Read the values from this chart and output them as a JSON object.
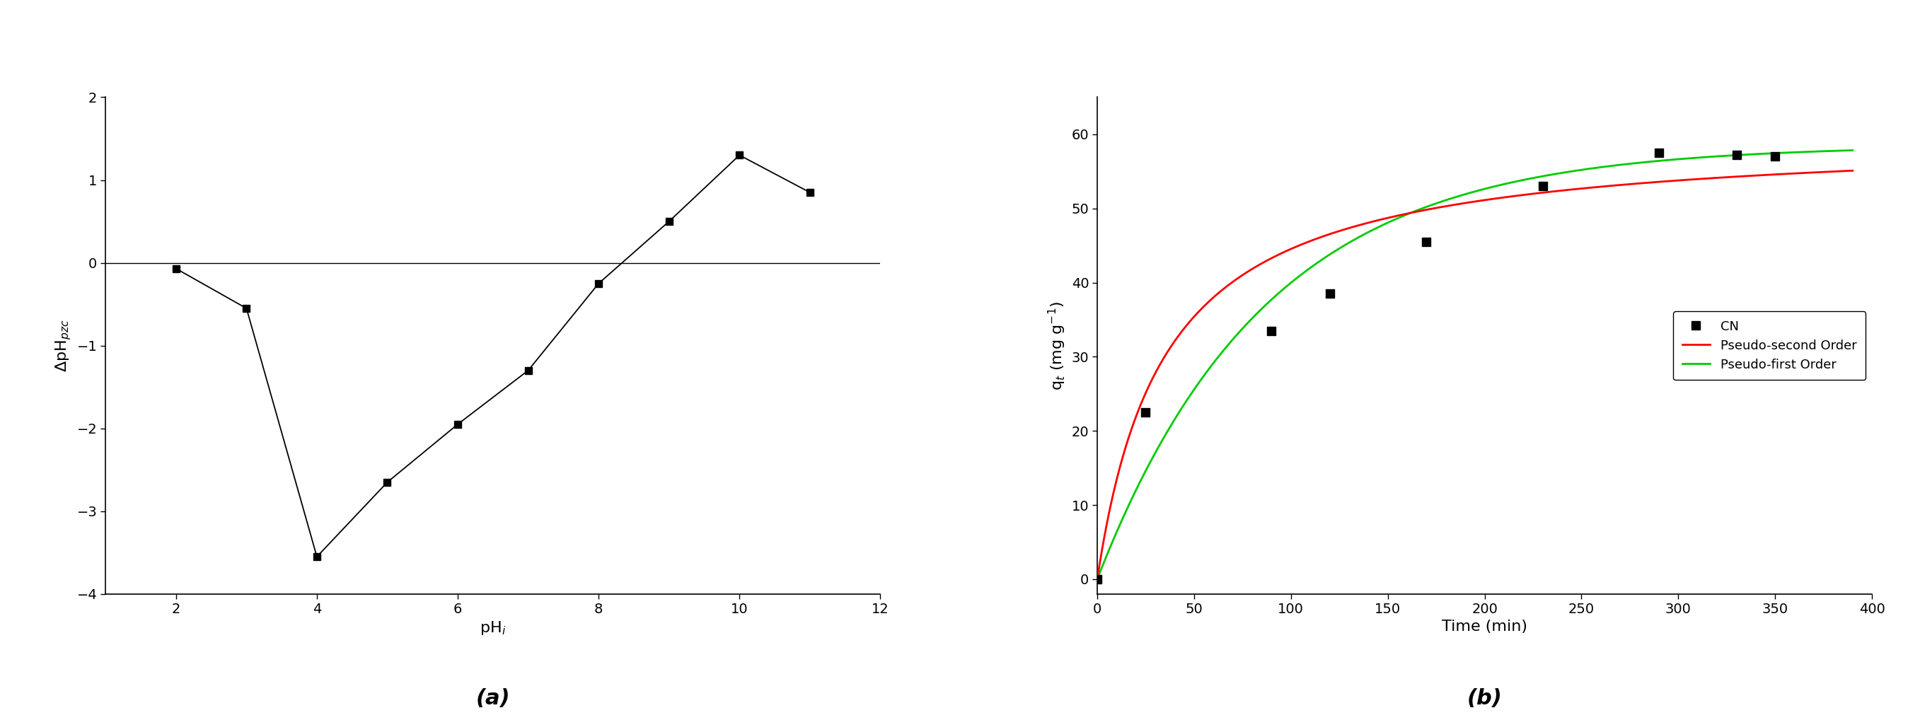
{
  "panel_a": {
    "x": [
      2,
      3,
      4,
      5,
      6,
      7,
      8,
      9,
      10,
      11
    ],
    "y": [
      -0.07,
      -0.55,
      -3.55,
      -2.65,
      -1.95,
      -1.3,
      -0.25,
      0.5,
      1.3,
      0.85
    ],
    "xlabel": "pH$_i$",
    "ylabel": "ΔpH$_{pzc}$",
    "xlim": [
      1,
      12
    ],
    "ylim": [
      -4,
      2
    ],
    "xticks": [
      2,
      4,
      6,
      8,
      10,
      12
    ],
    "yticks": [
      -4,
      -3,
      -2,
      -1,
      0,
      1,
      2
    ],
    "label": "(a)",
    "hline_y": 0
  },
  "panel_b": {
    "scatter_x": [
      0,
      25,
      90,
      120,
      170,
      230,
      290,
      330,
      350
    ],
    "scatter_y": [
      0,
      22.5,
      33.5,
      38.5,
      45.5,
      53.0,
      57.5,
      57.2,
      57.0
    ],
    "xlabel": "Time (min)",
    "ylabel": "q$_t$ (mg g$^{-1}$)",
    "xlim": [
      0,
      400
    ],
    "ylim": [
      -2,
      65
    ],
    "xticks": [
      0,
      50,
      100,
      150,
      200,
      250,
      300,
      350,
      400
    ],
    "yticks": [
      0,
      10,
      20,
      30,
      40,
      50,
      60
    ],
    "label": "(b)",
    "pseudo_second_color": "#FF0000",
    "pseudo_first_color": "#00CC00",
    "pseudo_second_params": {
      "qe": 60.0,
      "k2": 0.00048
    },
    "pseudo_first_params": {
      "qe": 58.5,
      "k1": 0.0115
    },
    "legend_labels": [
      "CN",
      "Pseudo-second Order",
      "Pseudo-first Order"
    ]
  },
  "background_color": "#FFFFFF",
  "marker_color": "#000000",
  "line_color": "#000000"
}
